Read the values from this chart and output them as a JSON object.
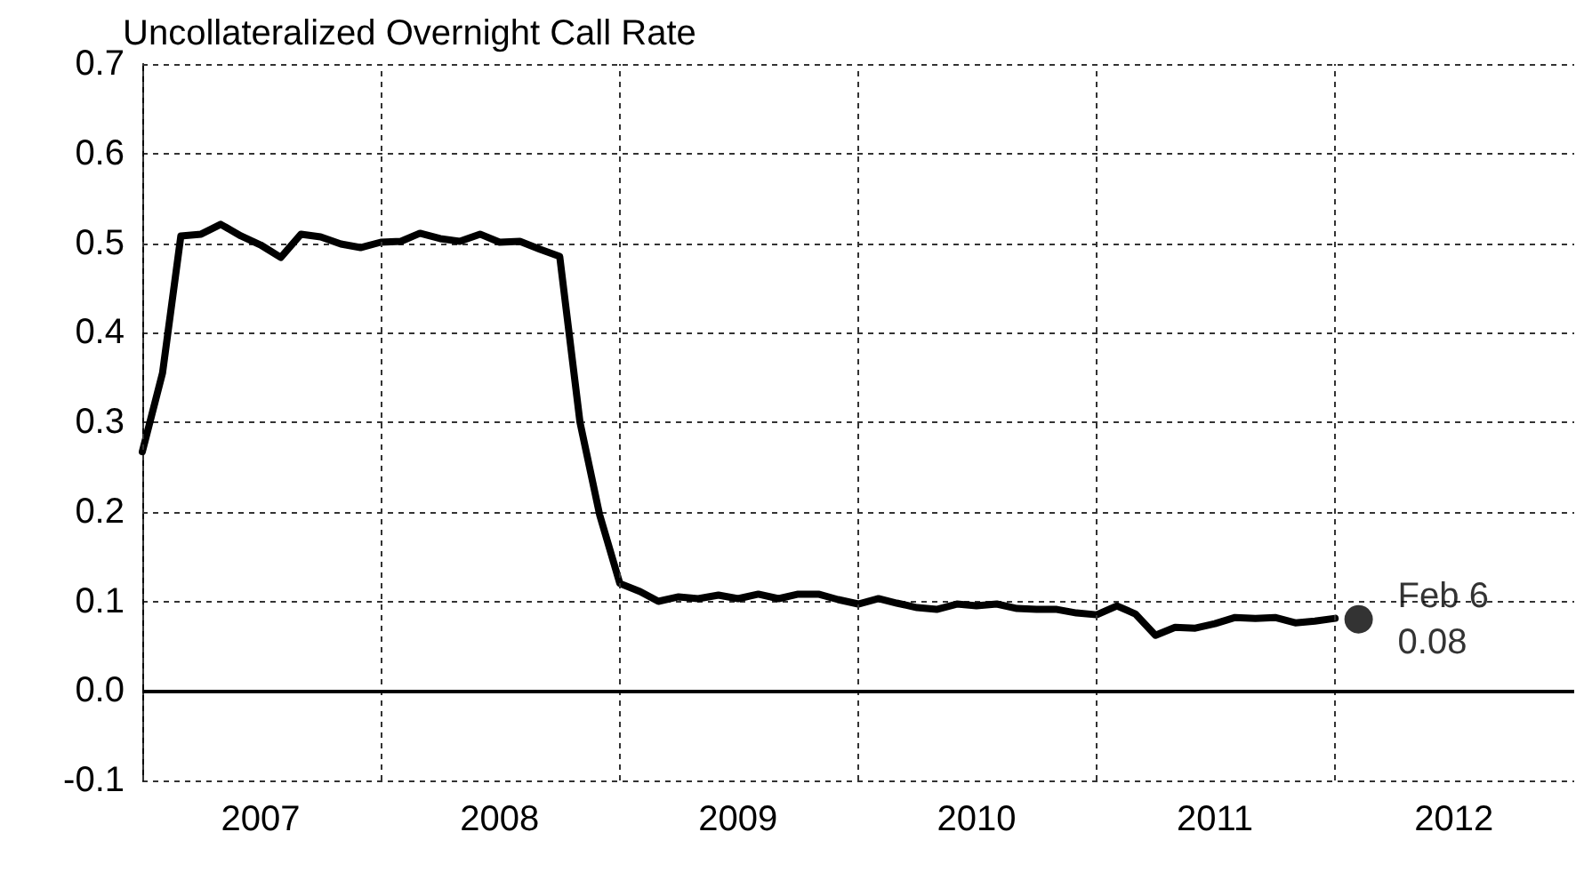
{
  "chart_data": {
    "type": "line",
    "title": "Uncollateralized Overnight Call Rate",
    "xlim": [
      "2007-01",
      "2013-01"
    ],
    "xticks": [
      {
        "value": "2007-01",
        "label": null
      },
      {
        "value": "2007-07",
        "label": "2007"
      },
      {
        "value": "2008-01",
        "label": null
      },
      {
        "value": "2008-07",
        "label": "2008"
      },
      {
        "value": "2009-01",
        "label": null
      },
      {
        "value": "2009-07",
        "label": "2009"
      },
      {
        "value": "2010-01",
        "label": null
      },
      {
        "value": "2010-07",
        "label": "2010"
      },
      {
        "value": "2011-01",
        "label": null
      },
      {
        "value": "2011-07",
        "label": "2011"
      },
      {
        "value": "2012-01",
        "label": null
      },
      {
        "value": "2012-07",
        "label": "2012"
      }
    ],
    "ylim": [
      -0.1,
      0.7
    ],
    "yticks": [
      {
        "value": -0.1,
        "label": "-0.1"
      },
      {
        "value": 0,
        "label": "0.0"
      },
      {
        "value": 0.1,
        "label": "0.1"
      },
      {
        "value": 0.2,
        "label": "0.2"
      },
      {
        "value": 0.3,
        "label": "0.3"
      },
      {
        "value": 0.4,
        "label": "0.4"
      },
      {
        "value": 0.5,
        "label": "0.5"
      },
      {
        "value": 0.6,
        "label": "0.6"
      },
      {
        "value": 0.7,
        "label": "0.7"
      }
    ],
    "grid": true,
    "ref_lines": [
      {
        "axis": "y",
        "value": 0,
        "color": "#000000",
        "line_style": "solid"
      }
    ],
    "series": [
      {
        "color": "#000000",
        "marker": "none",
        "line_style": "solid",
        "x": [
          "2007-01",
          "2007-02",
          "2007-03",
          "2007-04",
          "2007-05",
          "2007-06",
          "2007-07",
          "2007-08",
          "2007-09",
          "2007-10",
          "2007-11",
          "2007-12",
          "2008-01",
          "2008-02",
          "2008-03",
          "2008-04",
          "2008-05",
          "2008-06",
          "2008-07",
          "2008-08",
          "2008-09",
          "2008-10",
          "2008-11",
          "2008-12",
          "2009-01",
          "2009-02",
          "2009-03",
          "2009-04",
          "2009-05",
          "2009-06",
          "2009-07",
          "2009-08",
          "2009-09",
          "2009-10",
          "2009-11",
          "2009-12",
          "2010-01",
          "2010-02",
          "2010-03",
          "2010-04",
          "2010-05",
          "2010-06",
          "2010-07",
          "2010-08",
          "2010-09",
          "2010-10",
          "2010-11",
          "2010-12",
          "2011-01",
          "2011-02",
          "2011-03",
          "2011-04",
          "2011-05",
          "2011-06",
          "2011-07",
          "2011-08",
          "2011-09",
          "2011-10",
          "2011-11",
          "2011-12",
          "2012-01"
        ],
        "values": [
          0.267,
          0.355,
          0.508,
          0.51,
          0.521,
          0.508,
          0.498,
          0.484,
          0.51,
          0.507,
          0.499,
          0.495,
          0.501,
          0.502,
          0.511,
          0.505,
          0.502,
          0.51,
          0.501,
          0.502,
          0.493,
          0.485,
          0.3,
          0.197,
          0.12,
          0.111,
          0.1,
          0.105,
          0.103,
          0.107,
          0.103,
          0.108,
          0.103,
          0.108,
          0.108,
          0.102,
          0.097,
          0.103,
          0.098,
          0.093,
          0.091,
          0.097,
          0.095,
          0.097,
          0.092,
          0.091,
          0.091,
          0.087,
          0.085,
          0.095,
          0.086,
          0.062,
          0.071,
          0.07,
          0.075,
          0.082,
          0.081,
          0.082,
          0.076,
          0.078,
          0.081
        ]
      },
      {
        "type": "scatter",
        "color": "#000000",
        "marker": "circle",
        "x": [
          "2012-02-06"
        ],
        "values": [
          0.08
        ],
        "value_labels": [
          "Feb 6\n0.08"
        ]
      }
    ]
  }
}
